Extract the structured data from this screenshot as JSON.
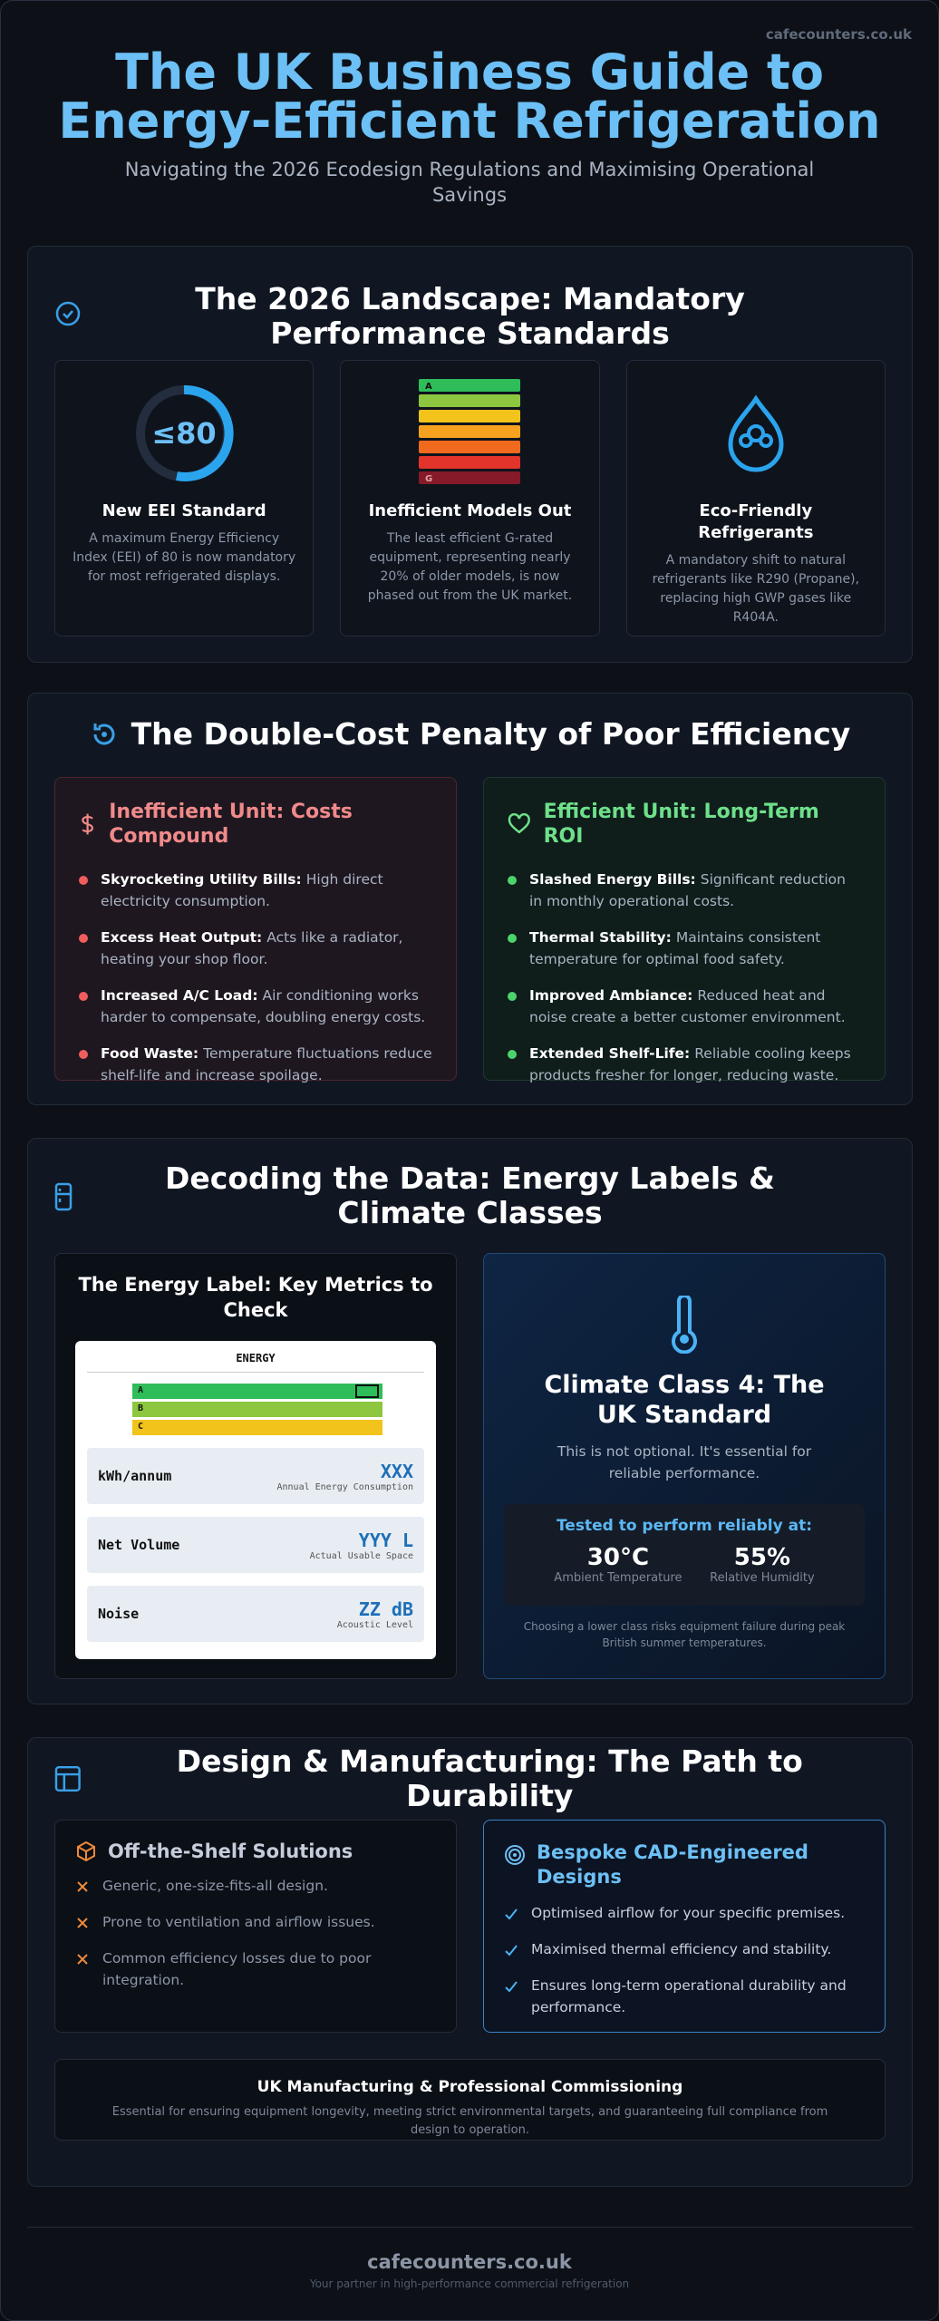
{
  "header": {
    "site": "cafecounters.co.uk",
    "title": "The UK Business Guide to Energy-Efficient Refrigeration",
    "subtitle": "Navigating the 2026 Ecodesign Regulations and Maximising Operational Savings"
  },
  "landscape": {
    "title": "The 2026 Landscape: Mandatory Performance Standards",
    "cards": [
      {
        "badge": "≤80",
        "title": "New EEI Standard",
        "text": "A maximum Energy Efficiency Index (EEI) of 80 is now mandatory for most refrigerated displays."
      },
      {
        "label_top": "A",
        "label_bottom": "G",
        "title": "Inefficient Models Out",
        "text": "The least efficient G-rated equipment, representing nearly 20% of older models, is now phased out from the UK market."
      },
      {
        "title": "Eco-Friendly Refrigerants",
        "text": "A mandatory shift to natural refrigerants like R290 (Propane), replacing high GWP gases like R404A."
      }
    ]
  },
  "penalty": {
    "title": "The Double-Cost Penalty of Poor Efficiency",
    "inefficient": {
      "title": "Inefficient Unit: Costs Compound",
      "items": [
        {
          "label": "Skyrocketing Utility Bills:",
          "text": "High direct electricity consumption."
        },
        {
          "label": "Excess Heat Output:",
          "text": "Acts like a radiator, heating your shop floor."
        },
        {
          "label": "Increased A/C Load:",
          "text": "Air conditioning works harder to compensate, doubling energy costs."
        },
        {
          "label": "Food Waste:",
          "text": "Temperature fluctuations reduce shelf-life and increase spoilage."
        }
      ]
    },
    "efficient": {
      "title": "Efficient Unit: Long-Term ROI",
      "items": [
        {
          "label": "Slashed Energy Bills:",
          "text": "Significant reduction in monthly operational costs."
        },
        {
          "label": "Thermal Stability:",
          "text": "Maintains consistent temperature for optimal food safety."
        },
        {
          "label": "Improved Ambiance:",
          "text": "Reduced heat and noise create a better customer environment."
        },
        {
          "label": "Extended Shelf-Life:",
          "text": "Reliable cooling keeps products fresher for longer, reducing waste."
        }
      ]
    }
  },
  "decoding": {
    "title": "Decoding the Data: Energy Labels & Climate Classes",
    "label_card": {
      "title": "The Energy Label: Key Metrics to Check",
      "label_heading": "ENERGY",
      "classes": [
        "A",
        "B",
        "C"
      ],
      "metrics": [
        {
          "name": "kWh/annum",
          "value": "XXX",
          "caption": "Annual Energy Consumption"
        },
        {
          "name": "Net Volume",
          "value": "YYY L",
          "caption": "Actual Usable Space"
        },
        {
          "name": "Noise",
          "value": "ZZ dB",
          "caption": "Acoustic Level"
        }
      ]
    },
    "climate": {
      "title": "Climate Class 4: The UK Standard",
      "text": "This is not optional. It's essential for reliable performance.",
      "box_title": "Tested to perform reliably at:",
      "stats": [
        {
          "value": "30°C",
          "label": "Ambient Temperature"
        },
        {
          "value": "55%",
          "label": "Relative Humidity"
        }
      ],
      "note": "Choosing a lower class risks equipment failure during peak British summer temperatures."
    }
  },
  "design": {
    "title": "Design & Manufacturing: The Path to Durability",
    "off_shelf": {
      "title": "Off-the-Shelf Solutions",
      "items": [
        "Generic, one-size-fits-all design.",
        "Prone to ventilation and airflow issues.",
        "Common efficiency losses due to poor integration."
      ]
    },
    "bespoke": {
      "title": "Bespoke CAD-Engineered Designs",
      "items": [
        "Optimised airflow for your specific premises.",
        "Maximised thermal efficiency and stability.",
        "Ensures long-term operational durability and performance."
      ]
    },
    "commissioning": {
      "title": "UK Manufacturing & Professional Commissioning",
      "text": "Essential for ensuring equipment longevity, meeting strict environmental targets, and guaranteeing full compliance from design to operation."
    }
  },
  "footer": {
    "site": "cafecounters.co.uk",
    "tagline": "Your partner in high-performance commercial refrigeration"
  }
}
